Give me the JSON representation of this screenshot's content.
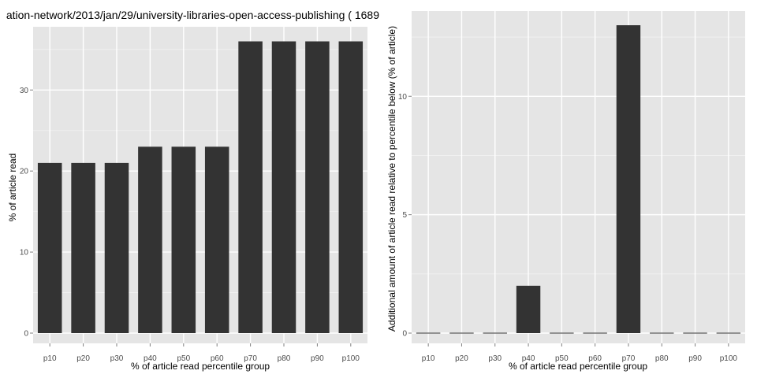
{
  "colors": {
    "panel_background": "#e5e5e5",
    "major_grid": "#ffffff",
    "minor_grid": "#f2f2f2",
    "bar_fill": "#333333",
    "tick_text": "#4d4d4d",
    "title_text": "#000000"
  },
  "chart_data": [
    {
      "type": "bar",
      "title": "ation-network/2013/jan/29/university-libraries-open-access-publishing ( 1689",
      "xlabel": "% of article read percentile group",
      "ylabel": "% of article read",
      "categories": [
        "p10",
        "p20",
        "p30",
        "p40",
        "p50",
        "p60",
        "p70",
        "p80",
        "p90",
        "p100"
      ],
      "values": [
        21,
        21,
        21,
        23,
        23,
        23,
        36,
        36,
        36,
        36
      ],
      "ylim": [
        0,
        37.8
      ],
      "yticks": [
        0,
        10,
        20,
        30
      ],
      "ytick_labels": [
        "0",
        "10",
        "20",
        "30"
      ],
      "grid": true
    },
    {
      "type": "bar",
      "title": "",
      "xlabel": "% of article read percentile group",
      "ylabel": "Additional amount of article read relative to percentile below (% of article)",
      "categories": [
        "p10",
        "p20",
        "p30",
        "p40",
        "p50",
        "p60",
        "p70",
        "p80",
        "p90",
        "p100"
      ],
      "values": [
        0,
        0,
        0,
        2,
        0,
        0,
        13,
        0,
        0,
        0
      ],
      "ylim": [
        0,
        13.6
      ],
      "yticks": [
        0,
        5,
        10
      ],
      "ytick_labels": [
        "0",
        "5",
        "10"
      ],
      "grid": true
    }
  ]
}
